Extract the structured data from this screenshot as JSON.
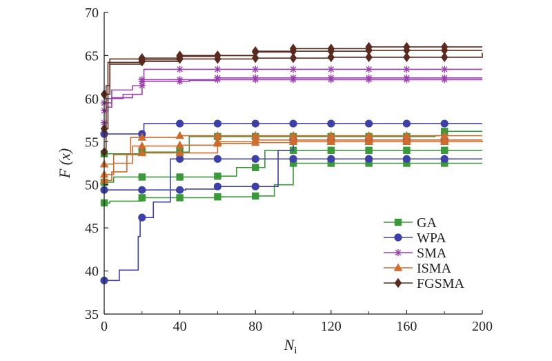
{
  "chart_data": {
    "type": "line",
    "xlabel_main": "N",
    "xlabel_sub": "i",
    "ylabel": "F (x)",
    "xlim": [
      0,
      200
    ],
    "ylim": [
      35,
      70
    ],
    "xticks": [
      0,
      40,
      80,
      120,
      160,
      200
    ],
    "yticks": [
      35,
      40,
      45,
      50,
      55,
      60,
      65,
      70
    ],
    "grid": false,
    "legend_position": "bottom-right",
    "series": [
      {
        "name": "GA",
        "color": "#3a9a3a",
        "marker": "square",
        "runs": [
          [
            [
              0,
              47.9
            ],
            [
              3,
              48.1
            ],
            [
              20,
              48.5
            ],
            [
              60,
              48.6
            ],
            [
              80,
              48.7
            ],
            [
              90,
              50
            ],
            [
              100,
              52.5
            ],
            [
              200,
              52.5
            ]
          ],
          [
            [
              0,
              50.3
            ],
            [
              5,
              50.9
            ],
            [
              60,
              51.0
            ],
            [
              70,
              52
            ],
            [
              85,
              54.0
            ],
            [
              95,
              54.0
            ],
            [
              200,
              54.0
            ]
          ],
          [
            [
              0,
              53.6
            ],
            [
              20,
              53.8
            ],
            [
              40,
              53.8
            ],
            [
              45,
              55.6
            ],
            [
              175,
              55.7
            ],
            [
              180,
              56.2
            ],
            [
              200,
              56.2
            ]
          ]
        ]
      },
      {
        "name": "WPA",
        "color": "#3d40a8",
        "marker": "circle",
        "runs": [
          [
            [
              0,
              38.9
            ],
            [
              8,
              38.9
            ],
            [
              8,
              40.1
            ],
            [
              17,
              40.1
            ],
            [
              18,
              44.0
            ],
            [
              19,
              46.2
            ],
            [
              25,
              46.2
            ],
            [
              26,
              48.0
            ],
            [
              32,
              48.0
            ],
            [
              35,
              53.0
            ],
            [
              80,
              53.0
            ],
            [
              95,
              53.0
            ],
            [
              100,
              53.0
            ],
            [
              200,
              53.0
            ]
          ],
          [
            [
              0,
              49.4
            ],
            [
              38,
              49.4
            ],
            [
              43,
              49.5
            ],
            [
              60,
              49.8
            ],
            [
              80,
              49.8
            ],
            [
              92,
              54
            ],
            [
              100,
              55.2
            ],
            [
              200,
              55.2
            ]
          ],
          [
            [
              0,
              55.9
            ],
            [
              20,
              55.9
            ],
            [
              21,
              57.1
            ],
            [
              200,
              57.1
            ]
          ]
        ]
      },
      {
        "name": "SMA",
        "color": "#9b3fb0",
        "marker": "asterisk",
        "runs": [
          [
            [
              0,
              57.2
            ],
            [
              1,
              59.0
            ],
            [
              4,
              60.1
            ],
            [
              15,
              60.5
            ],
            [
              20,
              62.2
            ],
            [
              100,
              62.2
            ],
            [
              200,
              62.2
            ]
          ],
          [
            [
              0,
              58.6
            ],
            [
              2,
              60.0
            ],
            [
              10,
              60.5
            ],
            [
              20,
              62.0
            ],
            [
              45,
              62.1
            ],
            [
              60,
              62.4
            ],
            [
              200,
              62.4
            ]
          ],
          [
            [
              0,
              59.5
            ],
            [
              4,
              61.0
            ],
            [
              15,
              61.5
            ],
            [
              21,
              63.4
            ],
            [
              200,
              63.4
            ]
          ]
        ]
      },
      {
        "name": "ISMA",
        "color": "#d06b2e",
        "marker": "triangle",
        "runs": [
          [
            [
              0,
              50.5
            ],
            [
              4,
              51.5
            ],
            [
              12,
              53.5
            ],
            [
              20,
              53.7
            ],
            [
              40,
              53.7
            ],
            [
              60,
              54.8
            ],
            [
              80,
              54.9
            ],
            [
              100,
              55.0
            ],
            [
              200,
              55.1
            ]
          ],
          [
            [
              0,
              51.2
            ],
            [
              5,
              52.5
            ],
            [
              15,
              54.5
            ],
            [
              40,
              54.6
            ],
            [
              60,
              55.0
            ],
            [
              80,
              55.2
            ],
            [
              200,
              55.2
            ]
          ],
          [
            [
              0,
              52.4
            ],
            [
              5,
              53.5
            ],
            [
              14,
              55.5
            ],
            [
              20,
              55.5
            ],
            [
              40,
              55.7
            ],
            [
              60,
              55.7
            ],
            [
              200,
              55.7
            ]
          ]
        ]
      },
      {
        "name": "FGSMA",
        "color": "#5a2a1e",
        "marker": "diamond",
        "runs": [
          [
            [
              0,
              53.8
            ],
            [
              1,
              61.5
            ],
            [
              3,
              64.0
            ],
            [
              20,
              64.3
            ],
            [
              40,
              64.6
            ],
            [
              60,
              64.6
            ],
            [
              80,
              64.7
            ],
            [
              100,
              64.7
            ],
            [
              120,
              64.8
            ],
            [
              200,
              65.3
            ]
          ],
          [
            [
              0,
              56.5
            ],
            [
              2,
              64.2
            ],
            [
              20,
              64.5
            ],
            [
              40,
              64.9
            ],
            [
              60,
              65.0
            ],
            [
              80,
              65.4
            ],
            [
              100,
              65.5
            ],
            [
              120,
              65.5
            ],
            [
              140,
              65.6
            ],
            [
              200,
              65.6
            ]
          ],
          [
            [
              0,
              60.5
            ],
            [
              3,
              64.6
            ],
            [
              20,
              64.7
            ],
            [
              40,
              65.0
            ],
            [
              80,
              65.5
            ],
            [
              100,
              65.8
            ],
            [
              140,
              66.0
            ],
            [
              200,
              66.0
            ]
          ]
        ]
      }
    ]
  }
}
